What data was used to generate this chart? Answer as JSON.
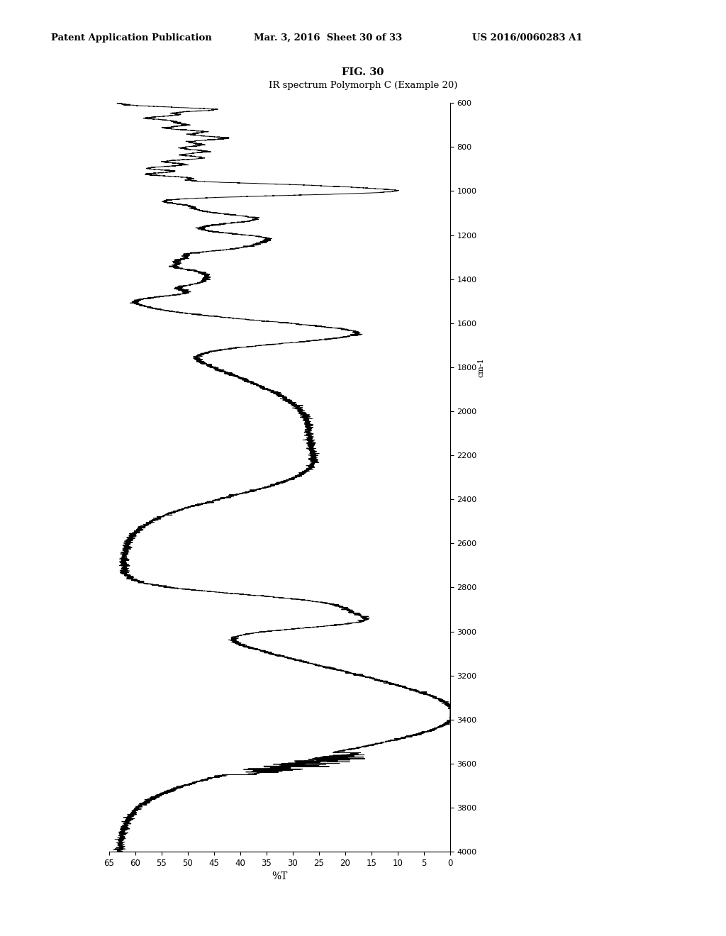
{
  "title_line1": "FIG. 30",
  "title_line2": "IR spectrum Polymorph C (Example 20)",
  "header_left": "Patent Application Publication",
  "header_mid": "Mar. 3, 2016  Sheet 30 of 33",
  "header_right": "US 2016/0060283 A1",
  "xlabel": "%T",
  "ylabel_label": "cm-1",
  "x_min": 0.0,
  "x_max": 65.0,
  "y_min": 600.0,
  "y_max": 4000.0,
  "x_ticks": [
    0,
    5,
    10,
    15,
    20,
    25,
    30,
    35,
    40,
    45,
    50,
    55,
    60,
    65
  ],
  "y_ticks": [
    600,
    800,
    1000,
    1200,
    1400,
    1600,
    1800,
    2000,
    2200,
    2400,
    2600,
    2800,
    3000,
    3200,
    3400,
    3600,
    3800,
    4000
  ],
  "background_color": "#ffffff",
  "line_color": "#000000"
}
